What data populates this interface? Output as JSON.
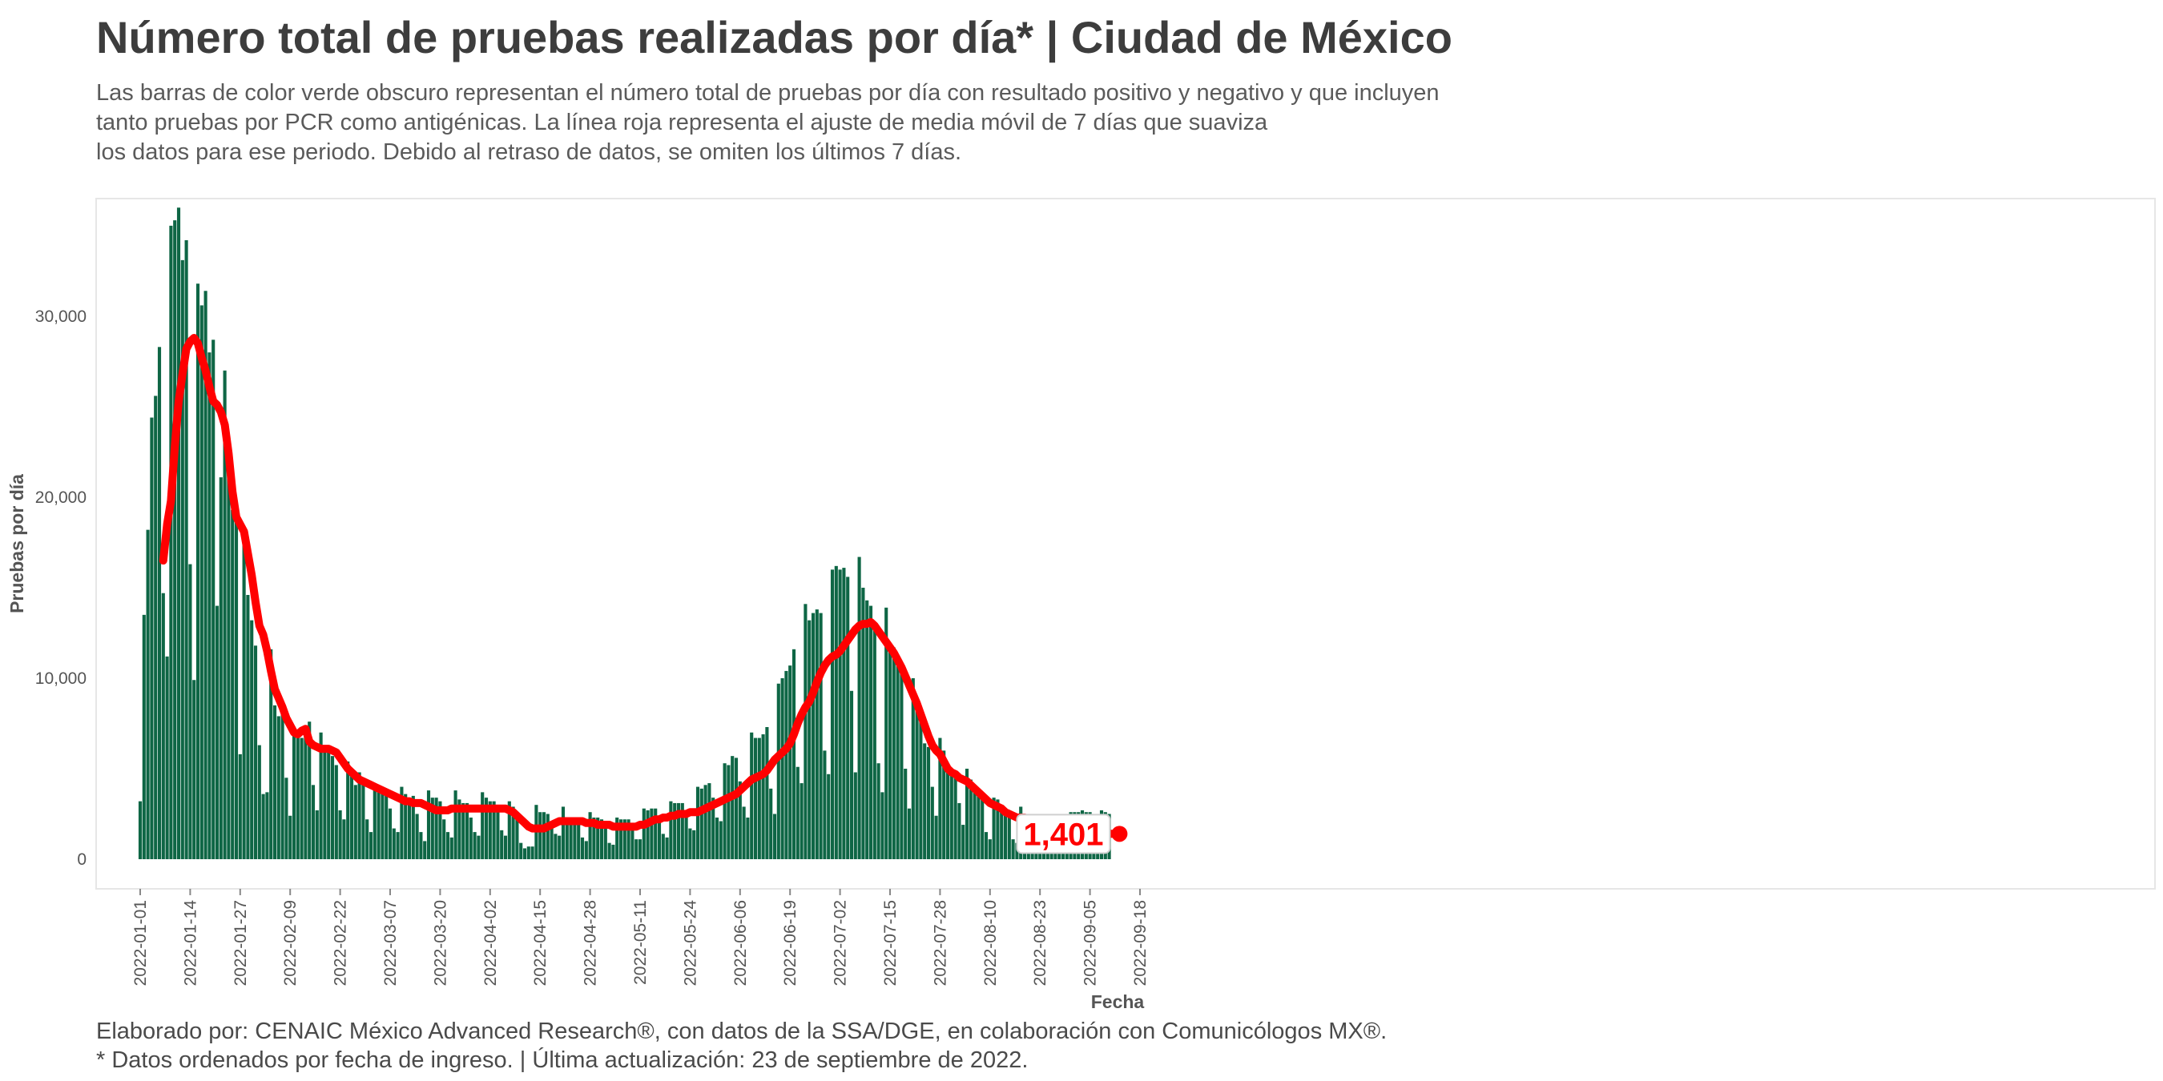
{
  "header": {
    "title": "Número total de pruebas realizadas por día* | Ciudad de México",
    "subtitle_lines": [
      "Las barras de color verde obscuro representan el número total de pruebas por día con resultado positivo y negativo y que incluyen",
      "tanto pruebas por PCR como antigénicas. La línea roja representa el ajuste de media móvil de 7 días que suaviza",
      "los datos para ese periodo. Debido al retraso de datos, se omiten los últimos 7 días."
    ]
  },
  "caption": {
    "line1": "Elaborado por: CENAIC México Advanced Research®, con datos de la SSA/DGE, en colaboración con Comunicólogos MX®.",
    "line2": "* Datos ordenados por fecha de ingreso. | Última actualización: 23 de septiembre de 2022."
  },
  "colors": {
    "bar": "#0e6645",
    "line": "#ff0000",
    "panel_border": "#e6e6e6"
  },
  "chart_data": {
    "type": "bar",
    "xlabel": "Fecha",
    "ylabel": "Pruebas por día",
    "start_date": "2022-01-01",
    "ylim": [
      0,
      36500
    ],
    "y_ticks": [
      0,
      10000,
      20000,
      30000
    ],
    "y_tick_labels": [
      "0",
      "10,000",
      "20,000",
      "30,000"
    ],
    "x_ticks": [
      "2022-01-01",
      "2022-01-14",
      "2022-01-27",
      "2022-02-09",
      "2022-02-22",
      "2022-03-07",
      "2022-03-20",
      "2022-04-02",
      "2022-04-15",
      "2022-04-28",
      "2022-05-11",
      "2022-05-24",
      "2022-06-06",
      "2022-06-19",
      "2022-07-02",
      "2022-07-15",
      "2022-07-28",
      "2022-08-10",
      "2022-08-23",
      "2022-09-05",
      "2022-09-18"
    ],
    "end_label": "1,401",
    "series": [
      {
        "name": "Pruebas por día",
        "type": "bar",
        "values": [
          3200,
          13500,
          18200,
          24400,
          25600,
          28300,
          14700,
          11200,
          35000,
          35300,
          36000,
          33100,
          34200,
          16300,
          9900,
          31800,
          30600,
          31400,
          28000,
          28700,
          14000,
          21100,
          27000,
          22300,
          19300,
          19600,
          5800,
          17400,
          14600,
          13200,
          11800,
          6300,
          3600,
          3700,
          11600,
          8500,
          7900,
          8200,
          4500,
          2400,
          7100,
          6700,
          6700,
          7400,
          7600,
          4100,
          2700,
          7000,
          6300,
          6200,
          5700,
          5200,
          2700,
          2200,
          5400,
          4600,
          4100,
          4800,
          4500,
          2200,
          1500,
          4200,
          3700,
          3700,
          3500,
          2800,
          1700,
          1500,
          4000,
          3600,
          3200,
          3500,
          2500,
          1500,
          1000,
          3800,
          3400,
          3400,
          3200,
          2200,
          1500,
          1200,
          3800,
          3300,
          3100,
          3100,
          2300,
          1500,
          1300,
          3700,
          3400,
          3200,
          3200,
          2700,
          1600,
          1300,
          3200,
          2900,
          2400,
          900,
          600,
          700,
          700,
          3000,
          2600,
          2600,
          2500,
          2000,
          1400,
          1300,
          2900,
          2300,
          2300,
          2200,
          1900,
          1200,
          1000,
          2600,
          2300,
          2300,
          2200,
          1800,
          900,
          800,
          2300,
          2200,
          2200,
          2200,
          1600,
          1100,
          1100,
          2800,
          2700,
          2800,
          2800,
          2100,
          1400,
          1200,
          3200,
          3100,
          3100,
          3100,
          2400,
          1700,
          1600,
          4000,
          3900,
          4100,
          4200,
          3400,
          2300,
          2100,
          5300,
          5200,
          5700,
          5600,
          4300,
          2900,
          2300,
          7000,
          6700,
          6700,
          6900,
          7300,
          3900,
          2500,
          9700,
          10000,
          10400,
          10700,
          11600,
          5100,
          4200,
          14100,
          13200,
          13600,
          13800,
          13600,
          6000,
          4700,
          16000,
          16200,
          16000,
          16100,
          15600,
          9300,
          4800,
          16700,
          15000,
          14300,
          14000,
          13000,
          5300,
          3700,
          13900,
          11900,
          11700,
          11200,
          10300,
          5000,
          2800,
          10000,
          8400,
          7600,
          6400,
          6200,
          4000,
          2400,
          6700,
          6000,
          5200,
          4800,
          4700,
          3100,
          1900,
          5000,
          4400,
          3900,
          3700,
          3400,
          1500,
          1100,
          3400,
          3300,
          2800,
          2700,
          2500,
          1100,
          900,
          2900,
          2300,
          2300,
          2200,
          2000,
          1100,
          900,
          2400,
          2200,
          2100,
          1900,
          1800,
          2500,
          2600,
          2600,
          2600,
          2700,
          2600,
          2600,
          2400,
          2500,
          2700,
          2600,
          2500
        ]
      },
      {
        "name": "Media móvil de 7 días",
        "type": "line",
        "x_start_index": 6,
        "values": [
          16500,
          18500,
          19800,
          22800,
          25300,
          26800,
          28200,
          28600,
          28800,
          28500,
          27700,
          27000,
          26100,
          25300,
          25100,
          24700,
          24000,
          22400,
          20300,
          18900,
          18500,
          18100,
          16900,
          15700,
          14200,
          12900,
          12400,
          11500,
          10400,
          9400,
          8900,
          8400,
          7800,
          7400,
          7000,
          6900,
          7100,
          7200,
          6500,
          6300,
          6200,
          6100,
          6100,
          6100,
          6000,
          5900,
          5600,
          5300,
          5000,
          4800,
          4600,
          4400,
          4300,
          4200,
          4100,
          4000,
          3900,
          3800,
          3700,
          3600,
          3500,
          3400,
          3300,
          3200,
          3200,
          3100,
          3100,
          3100,
          3000,
          2900,
          2800,
          2700,
          2700,
          2700,
          2700,
          2800,
          2800,
          2800,
          2800,
          2800,
          2800,
          2800,
          2800,
          2800,
          2800,
          2800,
          2800,
          2800,
          2800,
          2800,
          2700,
          2600,
          2400,
          2200,
          2000,
          1800,
          1700,
          1700,
          1700,
          1700,
          1800,
          1900,
          2000,
          2100,
          2100,
          2100,
          2100,
          2100,
          2100,
          2100,
          2000,
          2000,
          2000,
          1900,
          1900,
          1900,
          1900,
          1800,
          1800,
          1800,
          1800,
          1800,
          1800,
          1800,
          1900,
          1900,
          2000,
          2100,
          2200,
          2200,
          2300,
          2300,
          2400,
          2400,
          2500,
          2500,
          2500,
          2600,
          2600,
          2600,
          2700,
          2800,
          2900,
          3000,
          3100,
          3200,
          3300,
          3400,
          3500,
          3600,
          3800,
          4000,
          4200,
          4400,
          4500,
          4600,
          4700,
          4900,
          5200,
          5500,
          5700,
          5900,
          6100,
          6400,
          6900,
          7500,
          8000,
          8400,
          8700,
          9200,
          9800,
          10300,
          10700,
          11000,
          11200,
          11300,
          11500,
          11800,
          12100,
          12400,
          12700,
          12900,
          13000,
          13000,
          13100,
          12900,
          12600,
          12300,
          12000,
          11700,
          11400,
          11000,
          10600,
          10100,
          9600,
          9100,
          8600,
          8000,
          7400,
          6800,
          6300,
          6000,
          5800,
          5400,
          5000,
          4800,
          4700,
          4500,
          4400,
          4300,
          4100,
          3900,
          3700,
          3500,
          3300,
          3100,
          3000,
          2900,
          2800,
          2600,
          2500,
          2400,
          2300,
          2300,
          2300,
          2200,
          2200,
          2100,
          2100,
          2000,
          1900,
          1900,
          1800,
          1800,
          1800,
          1700,
          1600,
          1500,
          1500,
          1500,
          1500,
          1500,
          1500,
          1450,
          1430,
          1420,
          1410,
          1401
        ]
      }
    ]
  }
}
